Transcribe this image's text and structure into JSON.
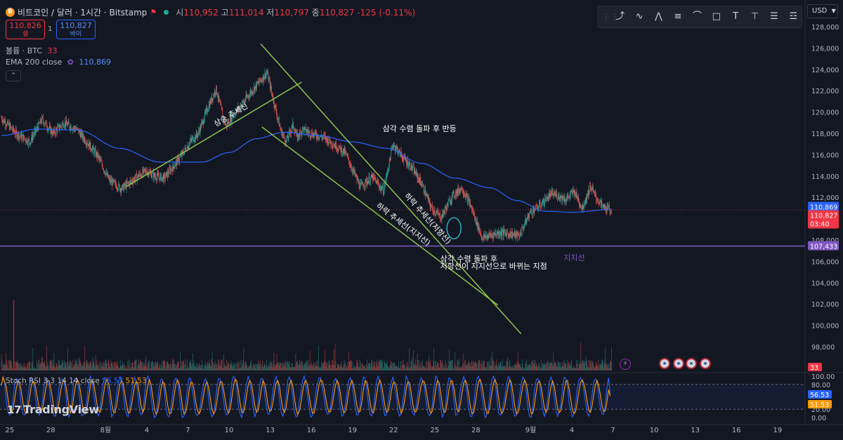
{
  "header": {
    "symbol": "비트코인 / 달러 · 1시간 · Bitstamp",
    "coin_glyph": "B",
    "ohlc": {
      "open_label": "시",
      "open": "110,952",
      "high_label": "고",
      "high": "111,014",
      "low_label": "저",
      "low": "110,797",
      "close_label": "종",
      "close": "110,827",
      "change": "-125 (-0.11%)"
    },
    "sell_price": "110,826",
    "sell_label": "셀",
    "spread": "1",
    "buy_price": "110,827",
    "buy_label": "바이",
    "volume_legend": "볼륨 · BTC",
    "volume_value": "33",
    "ema_legend": "EMA 200 close",
    "ema_value": "110,869",
    "currency": "USD"
  },
  "toolbar": {
    "tools": [
      "trend-line-icon",
      "path-icon",
      "abc-pattern-icon",
      "horizontal-lines-icon",
      "curve-icon",
      "rectangle-icon",
      "text-icon",
      "text-with-line-icon",
      "settings-sliders-icon",
      "more-lines-icon"
    ]
  },
  "colors": {
    "background": "#131722",
    "up": "#26a69a",
    "down": "#ef5350",
    "ema": "#2962ff",
    "trendline": "#8bc34a",
    "support": "#7e57c2",
    "stoch_k": "#2962ff",
    "stoch_d": "#ff9800",
    "last_price": "#f23645"
  },
  "chart_data": [
    {
      "type": "candlestick",
      "title": "비트코인 / 달러 · 1시간 · Bitstamp",
      "ylim": [
        96000,
        129000
      ],
      "y_ticks": [
        98000,
        100000,
        102000,
        104000,
        106000,
        108000,
        110000,
        112000,
        114000,
        116000,
        118000,
        120000,
        122000,
        124000,
        126000,
        128000
      ],
      "y_tick_labels": [
        "98,000",
        "100,000",
        "102,000",
        "104,000",
        "106,000",
        "108,000",
        "110,000",
        "112,000",
        "114,000",
        "116,000",
        "118,000",
        "120,000",
        "122,000",
        "124,000",
        "126,000",
        "128,000"
      ],
      "x_ticks": [
        "25",
        "28",
        "8월",
        "4",
        "7",
        "10",
        "13",
        "16",
        "19",
        "22",
        "25",
        "28",
        "9월",
        "4",
        "7",
        "10",
        "13",
        "16",
        "19"
      ],
      "x_tick_day_index": [
        0,
        3,
        7,
        10,
        13,
        16,
        19,
        22,
        25,
        28,
        31,
        34,
        38,
        41,
        44,
        47,
        50,
        53,
        56
      ],
      "x_range_days": [
        -0.6,
        58.2
      ],
      "last_data_day": 43.9,
      "price_path": {
        "days": [
          -0.6,
          0.5,
          1.5,
          2.4,
          3.2,
          4.0,
          5.0,
          6.5,
          7.3,
          8.2,
          9.3,
          10.0,
          10.6,
          11.3,
          12.4,
          13.2,
          13.8,
          14.5,
          15.1,
          15.4,
          15.8,
          16.4,
          17.6,
          18.8,
          19.8,
          20.2,
          20.7,
          21.0,
          21.4,
          22.0,
          23.0,
          24.5,
          25.6,
          26.5,
          27.3,
          28.0,
          28.8,
          29.3,
          30.0,
          30.8,
          31.5,
          32.3,
          33.0,
          33.6,
          34.5,
          35.2,
          35.8,
          36.5,
          37.2,
          38.0,
          38.7,
          39.5,
          40.0,
          40.6,
          41.2,
          41.8,
          42.4,
          42.8,
          43.3,
          43.9
        ],
        "prices": [
          119500,
          118000,
          117200,
          119300,
          118000,
          119000,
          118300,
          115800,
          113600,
          112800,
          113900,
          114500,
          114000,
          113800,
          115600,
          117200,
          118000,
          120400,
          122200,
          120500,
          118700,
          119800,
          121800,
          123700,
          118300,
          117200,
          118800,
          117600,
          118400,
          118000,
          117600,
          116200,
          113000,
          113900,
          112600,
          117000,
          115600,
          114900,
          113500,
          111000,
          110100,
          112100,
          112900,
          111400,
          108200,
          108500,
          108700,
          108600,
          108400,
          110600,
          111200,
          112300,
          112200,
          111800,
          112600,
          111000,
          113000,
          112000,
          111100,
          110827
        ]
      },
      "ema_200": {
        "days": [
          -0.6,
          2.0,
          5.0,
          8.0,
          11.0,
          14.0,
          16.0,
          18.0,
          20.0,
          22.5,
          25.0,
          27.5,
          30.0,
          32.5,
          35.0,
          37.0,
          39.0,
          41.0,
          43.9
        ],
        "values": [
          117800,
          118400,
          118300,
          116600,
          115300,
          115300,
          116200,
          117500,
          118100,
          117800,
          117200,
          116600,
          115200,
          113800,
          112900,
          111700,
          110700,
          110600,
          110869
        ]
      },
      "overlays": {
        "horizontal_lines": [
          {
            "price": 107433,
            "label": "107,433",
            "note": "지지선"
          }
        ],
        "price_labels": [
          {
            "text": "110,869",
            "kind": "ema"
          },
          {
            "text": "110,827",
            "kind": "last"
          },
          {
            "text": "03:40",
            "kind": "countdown"
          }
        ],
        "trend_lines": [
          {
            "from": [
              8.5,
              113000
            ],
            "to": [
              21.3,
              122800
            ],
            "label": "상승 추세선"
          },
          {
            "from": [
              18.3,
              126400
            ],
            "to": [
              37.3,
              99200
            ],
            "label": "하락 추세선(저항선)"
          },
          {
            "from": [
              18.4,
              118600
            ],
            "to": [
              35.6,
              101900
            ],
            "label": "하락 추세선(지지선)"
          }
        ],
        "annotations": [
          {
            "text": "삼각 수렴 돌파 후 반등",
            "day": 27.2,
            "price": 118200
          },
          {
            "text": "삼각 수렴 돌파 후",
            "day": 31.4,
            "price": 106000
          },
          {
            "text": "저항선이 지지선으로 바뀌는 지점",
            "day": 31.4,
            "price": 105300
          },
          {
            "text": "지지선",
            "day": 40.4,
            "price": 106100
          }
        ],
        "highlight_ellipse": {
          "day": 32.4,
          "price": 109100
        }
      }
    },
    {
      "type": "bar",
      "title": "볼륨 · BTC",
      "last_value": 33,
      "value_label": "33"
    },
    {
      "type": "line",
      "title": "Stoch RSI 3 3 14 14 close",
      "series": [
        {
          "name": "K",
          "last": 56.53
        },
        {
          "name": "D",
          "last": 51.53
        }
      ],
      "legend_values": [
        "56.53",
        "51.53"
      ],
      "ylim": [
        0,
        100
      ],
      "y_ticks": [
        0,
        20,
        80,
        100
      ],
      "y_tick_labels": [
        "0.00",
        "20.00",
        "80.00",
        "100.00"
      ],
      "bands": [
        20,
        80
      ]
    }
  ],
  "branding": {
    "logo": "TradingView",
    "logo_mark": "17"
  }
}
